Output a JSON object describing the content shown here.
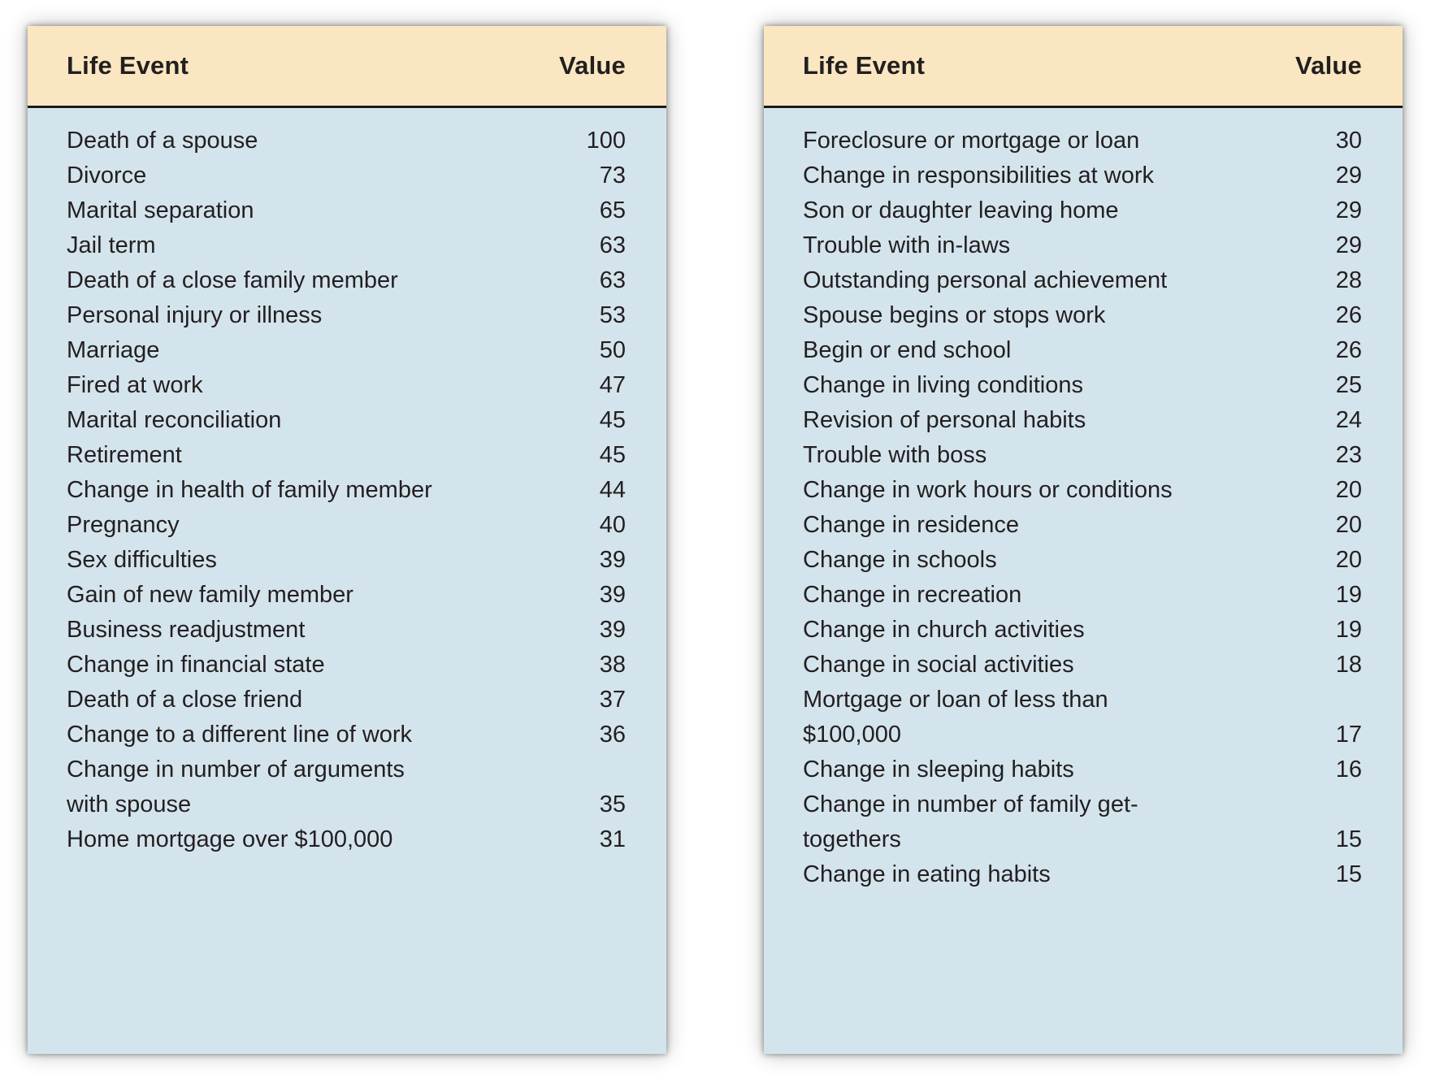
{
  "colors": {
    "header_bg": "#FAE7C1",
    "body_bg": "#D4E4ED",
    "separator": "#1A1A1A",
    "text": "#231F20"
  },
  "tables": [
    {
      "side": "left",
      "header": {
        "event": "Life Event",
        "value": "Value"
      },
      "rows": [
        {
          "event": [
            "Death of a spouse"
          ],
          "value": "100"
        },
        {
          "event": [
            "Divorce"
          ],
          "value": "73"
        },
        {
          "event": [
            "Marital separation"
          ],
          "value": "65"
        },
        {
          "event": [
            "Jail term"
          ],
          "value": "63"
        },
        {
          "event": [
            "Death of a close family member"
          ],
          "value": "63"
        },
        {
          "event": [
            "Personal injury or illness"
          ],
          "value": "53"
        },
        {
          "event": [
            "Marriage"
          ],
          "value": "50"
        },
        {
          "event": [
            "Fired at work"
          ],
          "value": "47"
        },
        {
          "event": [
            "Marital reconciliation"
          ],
          "value": "45"
        },
        {
          "event": [
            "Retirement"
          ],
          "value": "45"
        },
        {
          "event": [
            "Change in health of family member"
          ],
          "value": "44"
        },
        {
          "event": [
            "Pregnancy"
          ],
          "value": "40"
        },
        {
          "event": [
            "Sex difficulties"
          ],
          "value": "39"
        },
        {
          "event": [
            "Gain of new family member"
          ],
          "value": "39"
        },
        {
          "event": [
            "Business readjustment"
          ],
          "value": "39"
        },
        {
          "event": [
            "Change in financial state"
          ],
          "value": "38"
        },
        {
          "event": [
            "Death of a close friend"
          ],
          "value": "37"
        },
        {
          "event": [
            "Change to a different line of work"
          ],
          "value": "36"
        },
        {
          "event": [
            "Change in number of arguments",
            "with spouse"
          ],
          "value": "35"
        },
        {
          "event": [
            "Home mortgage over $100,000"
          ],
          "value": "31"
        }
      ]
    },
    {
      "side": "right",
      "header": {
        "event": "Life Event",
        "value": "Value"
      },
      "rows": [
        {
          "event": [
            "Foreclosure or mortgage or loan"
          ],
          "value": "30"
        },
        {
          "event": [
            "Change in responsibilities at work"
          ],
          "value": "29"
        },
        {
          "event": [
            "Son or daughter leaving home"
          ],
          "value": "29"
        },
        {
          "event": [
            "Trouble with in-laws"
          ],
          "value": "29"
        },
        {
          "event": [
            "Outstanding personal achievement"
          ],
          "value": "28"
        },
        {
          "event": [
            "Spouse begins or stops work"
          ],
          "value": "26"
        },
        {
          "event": [
            "Begin or end school"
          ],
          "value": "26"
        },
        {
          "event": [
            "Change in living conditions"
          ],
          "value": "25"
        },
        {
          "event": [
            "Revision of personal habits"
          ],
          "value": "24"
        },
        {
          "event": [
            "Trouble with boss"
          ],
          "value": "23"
        },
        {
          "event": [
            "Change in work hours or conditions"
          ],
          "value": "20"
        },
        {
          "event": [
            "Change in residence"
          ],
          "value": "20"
        },
        {
          "event": [
            "Change in schools"
          ],
          "value": "20"
        },
        {
          "event": [
            "Change in recreation"
          ],
          "value": "19"
        },
        {
          "event": [
            "Change in church activities"
          ],
          "value": "19"
        },
        {
          "event": [
            "Change in social activities"
          ],
          "value": "18"
        },
        {
          "event": [
            "Mortgage or loan of less than",
            "$100,000"
          ],
          "value": "17"
        },
        {
          "event": [
            "Change in sleeping habits"
          ],
          "value": "16"
        },
        {
          "event": [
            "Change in number of family get-",
            "togethers"
          ],
          "value": "15"
        },
        {
          "event": [
            "Change in eating habits"
          ],
          "value": "15"
        }
      ]
    }
  ]
}
